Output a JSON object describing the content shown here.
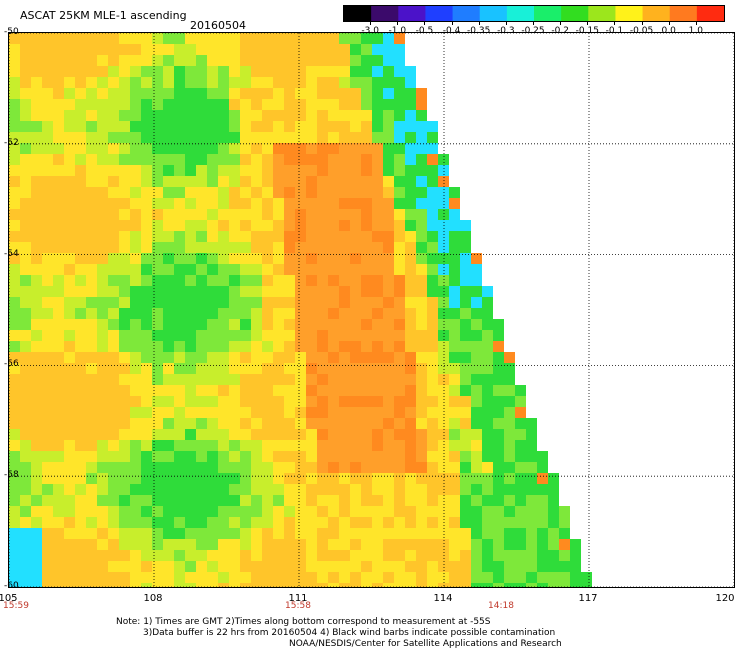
{
  "header": {
    "title": "ASCAT 25KM MLE-1 ascending",
    "date": "20160504"
  },
  "colorbar": {
    "tick_labels": [
      "-3.0",
      "-1.0",
      "-0.5",
      "-0.4",
      "-0.35",
      "-0.3",
      "-0.25",
      "-0.2",
      "-0.15",
      "-0.1",
      "-0.05",
      "0.0",
      "1.0"
    ],
    "colors": [
      "#000000",
      "#3b0a6b",
      "#4b12c9",
      "#1f3fff",
      "#1f7dff",
      "#19c2ff",
      "#18f0d8",
      "#1aee6a",
      "#32dd20",
      "#9ce61c",
      "#fff21a",
      "#ffb21e",
      "#ff7a1f",
      "#ff2b10"
    ]
  },
  "map": {
    "lat_labels": [
      "-50",
      "-52",
      "-54",
      "-56",
      "-58",
      "-60"
    ],
    "lon_labels": [
      "105",
      "108",
      "111",
      "114",
      "117",
      "120"
    ],
    "time_labels": [
      {
        "lon": 105,
        "text": "15:59"
      },
      {
        "lon": 111,
        "text": "15:58"
      },
      {
        "lon": 115.2,
        "text": "14:18"
      }
    ],
    "lat_range": [
      -60,
      -50
    ],
    "lon_range": [
      105,
      120
    ],
    "grid": "dotted",
    "palette": {
      "orange": "#ff9f2a",
      "dark_orange": "#ff8a1f",
      "yellow_orange": "#ffc52a",
      "yellow": "#ffe52a",
      "yellow_green": "#c8ee2c",
      "light_green": "#7ee83a",
      "green": "#2fdc3a",
      "teal": "#2ef0c8",
      "cyan": "#22e0ff",
      "white": "#ffffff"
    }
  },
  "notes": {
    "line1": "Note: 1) Times are GMT 2)Times along bottom correspond to measurement at -55S",
    "line2": "3)Data buffer is 22 hrs from 20160504 4) Black wind barbs indicate possible contamination",
    "line3": "NOAA/NESDIS/Center for Satellite Applications and Research"
  }
}
